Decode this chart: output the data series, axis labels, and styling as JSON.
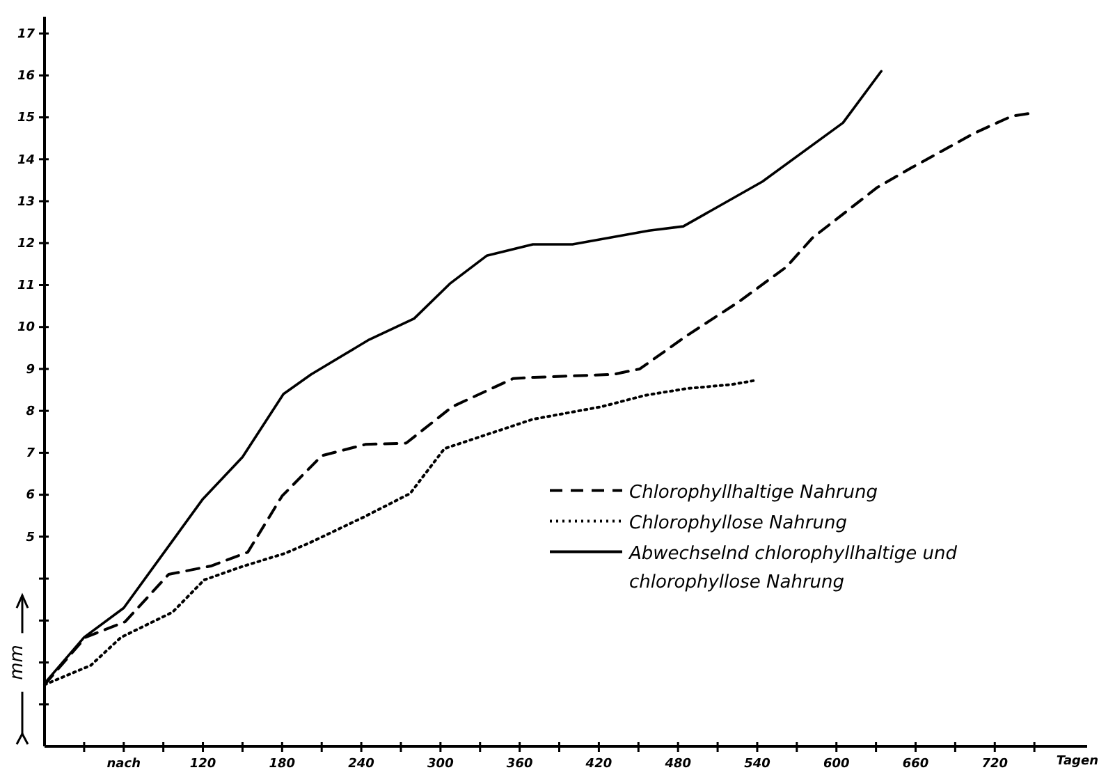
{
  "chart_data": {
    "type": "line",
    "xlabel": "Tagen",
    "ylabel": "mm",
    "xlim": [
      0,
      790
    ],
    "ylim": [
      0,
      17.4
    ],
    "xticks": [
      {
        "value": 30,
        "label": null
      },
      {
        "value": 60,
        "label": "nach"
      },
      {
        "value": 90,
        "label": null
      },
      120,
      {
        "value": 150,
        "label": null
      },
      180,
      {
        "value": 210,
        "label": null
      },
      240,
      {
        "value": 270,
        "label": null
      },
      300,
      {
        "value": 330,
        "label": null
      },
      360,
      {
        "value": 390,
        "label": null
      },
      420,
      {
        "value": 450,
        "label": null
      },
      480,
      {
        "value": 510,
        "label": null
      },
      540,
      {
        "value": 570,
        "label": null
      },
      600,
      {
        "value": 630,
        "label": null
      },
      660,
      {
        "value": 690,
        "label": null
      },
      720,
      {
        "value": 750,
        "label": null
      }
    ],
    "yticks": [
      {
        "value": 1,
        "label": null
      },
      {
        "value": 2,
        "label": null
      },
      {
        "value": 3,
        "label": null
      },
      {
        "value": 4,
        "label": null
      },
      5,
      6,
      7,
      8,
      9,
      10,
      11,
      12,
      13,
      14,
      15,
      16,
      17
    ],
    "legend": "right",
    "grid": false,
    "marker": "none",
    "series": [
      {
        "name": "Chlorophyllhaltige Nahrung",
        "color": "#000000",
        "line_style": "dashed",
        "x": [
          0,
          31,
          61,
          94,
          126,
          154,
          180,
          210,
          243,
          274,
          309,
          355,
          371,
          431,
          451,
          487,
          526,
          562,
          582,
          631,
          657,
          705,
          733,
          748
        ],
        "values": [
          1.47,
          2.6,
          2.97,
          4.1,
          4.3,
          4.63,
          5.97,
          6.93,
          7.2,
          7.23,
          8.1,
          8.77,
          8.8,
          8.87,
          9.0,
          9.8,
          10.6,
          11.43,
          12.13,
          13.33,
          13.8,
          14.63,
          15.03,
          15.1
        ]
      },
      {
        "name": "Chlorophyllose Nahrung",
        "color": "#000000",
        "line_style": "dotted",
        "x": [
          0,
          35,
          58,
          97,
          121,
          151,
          182,
          202,
          242,
          277,
          303,
          370,
          422,
          455,
          486,
          521,
          539
        ],
        "values": [
          1.47,
          1.93,
          2.6,
          3.2,
          3.97,
          4.3,
          4.6,
          4.87,
          5.47,
          6.03,
          7.1,
          7.8,
          8.1,
          8.37,
          8.53,
          8.63,
          8.73
        ]
      },
      {
        "name": "Abwechselnd chlorophyllhaltige und chlorophyllose Nahrung",
        "color": "#000000",
        "line_style": "solid",
        "x": [
          0,
          30,
          60,
          120,
          150,
          181,
          202,
          246,
          280,
          307,
          335,
          370,
          400,
          458,
          484,
          544,
          605,
          634
        ],
        "values": [
          1.5,
          2.6,
          3.3,
          5.9,
          6.9,
          8.4,
          8.87,
          9.7,
          10.2,
          11.03,
          11.7,
          11.97,
          11.97,
          12.3,
          12.4,
          13.47,
          14.87,
          16.1
        ]
      }
    ]
  }
}
